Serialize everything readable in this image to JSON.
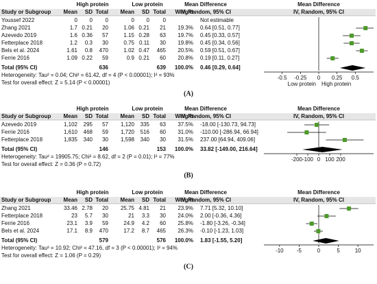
{
  "chart_data": [
    {
      "type": "forest",
      "panel_label": "(A)",
      "group_headers": [
        "High protein",
        "Low protein",
        "Mean Difference",
        "Mean Difference"
      ],
      "columns": [
        "Study or Subgroup",
        "Mean",
        "SD",
        "Total",
        "Mean",
        "SD",
        "Total",
        "Weight",
        "IV, Random, 95% CI",
        "IV, Random, 95% CI"
      ],
      "studies": [
        {
          "name": "Youssef 2022",
          "cells": [
            "0",
            "0",
            "0",
            "0",
            "0",
            "0"
          ],
          "md": null,
          "value_label": "Not estimable"
        },
        {
          "name": "Zhang 2021",
          "cells": [
            "1.7",
            "0.21",
            "20",
            "1.06",
            "0.21",
            "21"
          ],
          "weight": "19.3%",
          "md": 0.64,
          "ci": [
            0.51,
            0.77
          ],
          "value_label": "0.64 [0.51, 0.77]"
        },
        {
          "name": "Azevedo 2019",
          "cells": [
            "1.6",
            "0.36",
            "57",
            "1.15",
            "0.28",
            "63"
          ],
          "weight": "19.7%",
          "md": 0.45,
          "ci": [
            0.33,
            0.57
          ],
          "value_label": "0.45 [0.33, 0.57]"
        },
        {
          "name": "Fetterplace 2018",
          "cells": [
            "1.2",
            "0.3",
            "30",
            "0.75",
            "0.11",
            "30"
          ],
          "weight": "19.8%",
          "md": 0.45,
          "ci": [
            0.34,
            0.56
          ],
          "value_label": "0.45 [0.34, 0.56]"
        },
        {
          "name": "Bels et al. 2024",
          "cells": [
            "1.61",
            "0.8",
            "470",
            "1.02",
            "0.47",
            "465"
          ],
          "weight": "20.5%",
          "md": 0.59,
          "ci": [
            0.51,
            0.67
          ],
          "value_label": "0.59 [0.51, 0.67]"
        },
        {
          "name": "Ferrie 2016",
          "cells": [
            "1.09",
            "0.22",
            "59",
            "0.9",
            "0.21",
            "60"
          ],
          "weight": "20.8%",
          "md": 0.19,
          "ci": [
            0.11,
            0.27
          ],
          "value_label": "0.19 [0.11, 0.27]"
        }
      ],
      "total": {
        "name": "Total (95% CI)",
        "high_total": "636",
        "low_total": "639",
        "weight": "100.0%",
        "md": 0.46,
        "ci": [
          0.29,
          0.64
        ],
        "value_label": "0.46 [0.29, 0.64]"
      },
      "heterogeneity": "Heterogeneity: Tau² = 0.04; Chi² = 61.42, df = 4 (P < 0.00001); I² = 93%",
      "overall_effect": "Test for overall effect: Z = 5.14 (P < 0.00001)",
      "xlim": [
        -0.75,
        0.75
      ],
      "xticks": [
        -0.5,
        -0.25,
        0,
        0.25,
        0.5
      ],
      "x_labels": [
        "Low protein",
        "High protein"
      ],
      "color": "#4e9a2a"
    },
    {
      "type": "forest",
      "panel_label": "(B)",
      "group_headers": [
        "High protein",
        "Low protein",
        "Mean Difference",
        "Mean Difference"
      ],
      "columns": [
        "Study or Subgroup",
        "Mean",
        "SD",
        "Total",
        "Mean",
        "SD",
        "Total",
        "Weight",
        "IV, Random, 95% CI",
        "IV, Random, 95% CI"
      ],
      "studies": [
        {
          "name": "Azevedo 2019",
          "cells": [
            "1,102",
            "295",
            "57",
            "1,120",
            "335",
            "63"
          ],
          "weight": "37.5%",
          "md": -18.0,
          "ci": [
            -130.73,
            94.73
          ],
          "value_label": "-18.00 [-130.73, 94.73]"
        },
        {
          "name": "Ferrie 2016",
          "cells": [
            "1,610",
            "468",
            "59",
            "1,720",
            "516",
            "60"
          ],
          "weight": "31.0%",
          "md": -110.0,
          "ci": [
            -286.94,
            66.94
          ],
          "value_label": "-110.00 [-286.94, 66.94]"
        },
        {
          "name": "Fetterplace 2018",
          "cells": [
            "1,835",
            "340",
            "30",
            "1,598",
            "340",
            "30"
          ],
          "weight": "31.5%",
          "md": 237.0,
          "ci": [
            64.94,
            409.06
          ],
          "value_label": "237.00 [64.94, 409.06]"
        }
      ],
      "total": {
        "name": "Total (95% CI)",
        "high_total": "146",
        "low_total": "153",
        "weight": "100.0%",
        "md": 33.82,
        "ci": [
          -149.0,
          216.64
        ],
        "value_label": "33.82 [-149.00, 216.64]"
      },
      "heterogeneity": "Heterogeneity: Tau² = 19905.75; Chi² = 8.62, df = 2 (P = 0.01); I² = 77%",
      "overall_effect": "Test for overall effect: Z = 0.36 (P = 0.72)",
      "xlim": [
        -500,
        500
      ],
      "xticks": [
        -200,
        -100,
        0,
        100,
        200
      ],
      "color": "#4e9a2a"
    },
    {
      "type": "forest",
      "panel_label": "(C)",
      "group_headers": [
        "High protein",
        "Low protein",
        "Mean Difference",
        "Mean Difference"
      ],
      "columns": [
        "Study or Subgroup",
        "Mean",
        "SD",
        "Total",
        "Mean",
        "SD",
        "Total",
        "Weight",
        "IV, Random, 95% CI",
        "IV, Random, 95% CI"
      ],
      "studies": [
        {
          "name": "Zhang 2021",
          "cells": [
            "33.46",
            "2.78",
            "20",
            "25.75",
            "4.81",
            "21"
          ],
          "weight": "23.9%",
          "md": 7.71,
          "ci": [
            5.32,
            10.1
          ],
          "value_label": "7.71 [5.32, 10.10]"
        },
        {
          "name": "Fetterplace 2018",
          "cells": [
            "23",
            "5.7",
            "30",
            "21",
            "3.3",
            "30"
          ],
          "weight": "24.0%",
          "md": 2.0,
          "ci": [
            -0.36,
            4.36
          ],
          "value_label": "2.00 [-0.36, 4.36]"
        },
        {
          "name": "Ferrie 2016",
          "cells": [
            "23.1",
            "3.9",
            "59",
            "24.9",
            "4.2",
            "60"
          ],
          "weight": "25.8%",
          "md": -1.8,
          "ci": [
            -3.26,
            -0.34
          ],
          "value_label": "-1.80 [-3.26, -0.34]"
        },
        {
          "name": "Bels et al. 2024",
          "cells": [
            "17.1",
            "8.9",
            "470",
            "17.2",
            "8.7",
            "465"
          ],
          "weight": "26.3%",
          "md": -0.1,
          "ci": [
            -1.23,
            1.03
          ],
          "value_label": "-0.10 [-1.23, 1.03]"
        }
      ],
      "total": {
        "name": "Total (95% CI)",
        "high_total": "579",
        "low_total": "576",
        "weight": "100.0%",
        "md": 1.83,
        "ci": [
          -1.55,
          5.2
        ],
        "value_label": "1.83 [-1.55, 5.20]"
      },
      "heterogeneity": "Heterogeneity: Tau² = 10.92; Chi² = 47.16, df = 3 (P < 0.00001); I² = 94%",
      "overall_effect": "Test for overall effect: Z = 1.06 (P = 0.29)",
      "xlim": [
        -14,
        14
      ],
      "xticks": [
        -10,
        -5,
        0,
        5,
        10
      ],
      "color": "#4e9a2a"
    }
  ]
}
